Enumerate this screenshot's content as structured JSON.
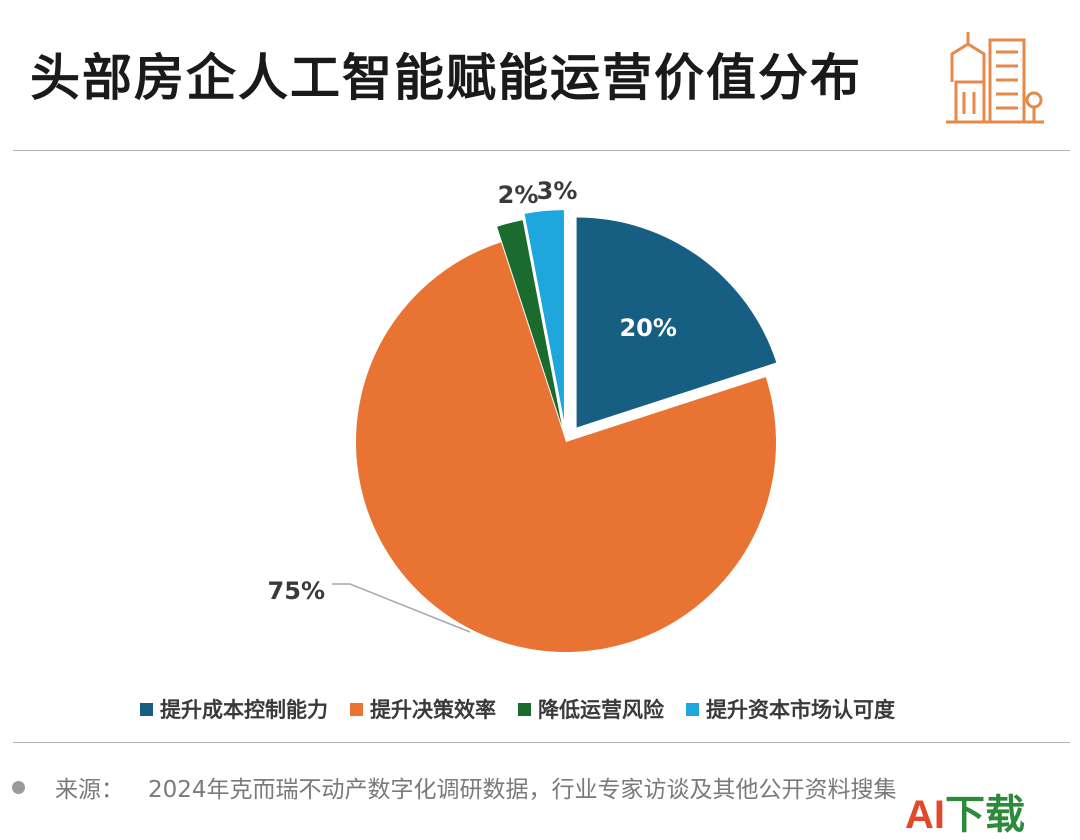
{
  "title": "头部房企人工智能赋能运营价值分布",
  "icons": {
    "header": "city-buildings-icon",
    "source_bullet": "bullet-dot-icon"
  },
  "chart_data": {
    "type": "pie",
    "slices": [
      {
        "label": "提升成本控制能力",
        "value": 20,
        "display": "20%",
        "color": "#165f82",
        "exploded": true
      },
      {
        "label": "提升决策效率",
        "value": 75,
        "display": "75%",
        "color": "#e87333",
        "exploded": false
      },
      {
        "label": "降低运营风险",
        "value": 2,
        "display": "2%",
        "color": "#1b6b2e",
        "exploded": true
      },
      {
        "label": "提升资本市场认可度",
        "value": 3,
        "display": "3%",
        "color": "#1ea7dc",
        "exploded": true
      }
    ],
    "legend_position": "bottom"
  },
  "source": {
    "label": "来源：",
    "text": "2024年克而瑞不动产数字化调研数据，行业专家访谈及其他公开资料搜集"
  },
  "watermark": {
    "a": "AI",
    "rest": "下载"
  }
}
